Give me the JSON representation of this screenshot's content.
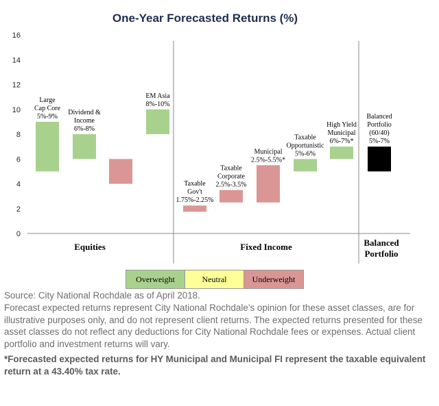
{
  "chart_data": {
    "type": "floating-bar",
    "title": "One-Year Forecasted Returns (%)",
    "ylim": [
      0,
      16
    ],
    "yticks": [
      0,
      2,
      4,
      6,
      8,
      10,
      12,
      14,
      16
    ],
    "groups": [
      "Equities",
      "Fixed Income",
      "Balanced Portfolio"
    ],
    "bars": [
      {
        "group": "Equities",
        "label": [
          "Large",
          "Cap Core",
          "5%-9%"
        ],
        "low": 5,
        "high": 9,
        "class": "Overweight"
      },
      {
        "group": "Equities",
        "label": [
          "Dividend &",
          "Income",
          "6%-8%"
        ],
        "low": 6,
        "high": 8,
        "class": "Overweight"
      },
      {
        "group": "Equities",
        "label": [],
        "low": 4,
        "high": 6,
        "class": "Underweight"
      },
      {
        "group": "Equities",
        "label": [
          "EM Asia",
          "8%-10%"
        ],
        "low": 8,
        "high": 10,
        "class": "Overweight"
      },
      {
        "group": "Fixed Income",
        "label": [
          "Taxable",
          "Gov't",
          "1.75%-2.25%"
        ],
        "low": 1.75,
        "high": 2.25,
        "class": "Underweight"
      },
      {
        "group": "Fixed Income",
        "label": [
          "Taxable",
          "Corporate",
          "2.5%-3.5%"
        ],
        "low": 2.5,
        "high": 3.5,
        "class": "Underweight"
      },
      {
        "group": "Fixed Income",
        "label": [
          "Municipal",
          "2.5%-5.5%*"
        ],
        "low": 2.5,
        "high": 5.5,
        "class": "Underweight"
      },
      {
        "group": "Fixed Income",
        "label": [
          "Taxable",
          "Opportunistic",
          "5%-6%"
        ],
        "low": 5,
        "high": 6,
        "class": "Overweight"
      },
      {
        "group": "Fixed Income",
        "label": [
          "High Yield",
          "Municipal",
          "6%-7%*"
        ],
        "low": 6,
        "high": 7,
        "class": "Overweight"
      },
      {
        "group": "Balanced Portfolio",
        "label": [
          "Balanced",
          "Portfolio",
          "(60/40)",
          "5%-7%"
        ],
        "low": 5,
        "high": 7,
        "class": "Balanced"
      }
    ],
    "legend": [
      {
        "name": "Overweight",
        "color": "#a9d18e"
      },
      {
        "name": "Neutral",
        "color": "#ffff99"
      },
      {
        "name": "Underweight",
        "color": "#d99694"
      }
    ],
    "colors": {
      "Overweight": "#a9d18e",
      "Underweight": "#d99694",
      "Balanced": "#000000"
    }
  },
  "notes": {
    "source": "Source: City National Rochdale as of April 2018.",
    "disclaimer": "Forecast expected returns represent City National Rochdale’s opinion for these asset classes, are for illustrative purposes only, and do not represent client returns. The expected returns presented for these asset classes do not reflect any deductions for City National Rochdale fees or expenses. Actual client portfolio and investment returns will vary.",
    "footnote": "*Forecasted expected returns for HY Municipal and Municipal FI represent the taxable equivalent return at a 43.40% tax rate."
  }
}
